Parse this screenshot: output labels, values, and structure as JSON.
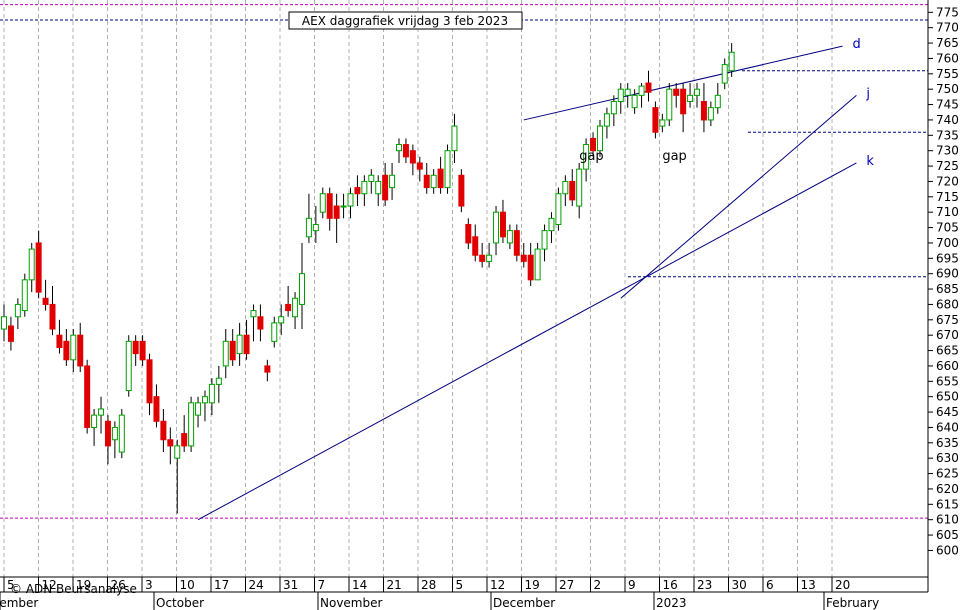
{
  "chart_data": {
    "type": "candlestick",
    "title": "AEX daggrafiek vrijdag 3 feb 2023",
    "copyright": "© ADN Beursanalyse",
    "ylim": [
      597,
      778
    ],
    "y_ticks": [
      600,
      605,
      610,
      615,
      620,
      625,
      630,
      635,
      640,
      645,
      650,
      655,
      660,
      665,
      670,
      675,
      680,
      685,
      690,
      695,
      700,
      705,
      710,
      715,
      720,
      725,
      730,
      735,
      740,
      745,
      750,
      755,
      760,
      765,
      770,
      775
    ],
    "x_day_labels": [
      "5",
      "12",
      "19",
      "26",
      "3",
      "10",
      "17",
      "24",
      "31",
      "7",
      "14",
      "21",
      "28",
      "5",
      "12",
      "19",
      "27",
      "2",
      "9",
      "16",
      "23",
      "30",
      "6",
      "13",
      "20"
    ],
    "x_month_labels": [
      "September",
      "October",
      "November",
      "December",
      "2023",
      "February"
    ],
    "horizontal_levels": [
      {
        "name": "top",
        "value": 772.5,
        "color": "#000080"
      },
      {
        "name": "top2",
        "value": 777.5,
        "color": "#c000c0"
      },
      {
        "name": "resistance-756",
        "value": 756,
        "color": "#000080"
      },
      {
        "name": "support-736",
        "value": 736,
        "color": "#000080"
      },
      {
        "name": "support-689",
        "value": 689,
        "color": "#000080"
      },
      {
        "name": "low-610",
        "value": 610.5,
        "color": "#c000c0"
      }
    ],
    "trendlines": [
      {
        "label": "d",
        "from": {
          "day": 75,
          "value": 740
        },
        "to": {
          "day": 121,
          "value": 764
        }
      },
      {
        "label": "j",
        "from": {
          "day": 89,
          "value": 682
        },
        "to": {
          "day": 123,
          "value": 748
        }
      },
      {
        "label": "k",
        "from": {
          "day": 28,
          "value": 610
        },
        "to": {
          "day": 123,
          "value": 726
        }
      }
    ],
    "annotations": [
      {
        "text": "gap",
        "day": 83,
        "value": 727
      },
      {
        "text": "gap",
        "day": 95,
        "value": 727
      }
    ],
    "candles": [
      {
        "o": 672,
        "h": 680,
        "l": 668,
        "c": 676
      },
      {
        "o": 673,
        "h": 676,
        "l": 665,
        "c": 668
      },
      {
        "o": 676,
        "h": 682,
        "l": 672,
        "c": 680
      },
      {
        "o": 678,
        "h": 690,
        "l": 676,
        "c": 688
      },
      {
        "o": 688,
        "h": 700,
        "l": 684,
        "c": 698
      },
      {
        "o": 700,
        "h": 704,
        "l": 682,
        "c": 684
      },
      {
        "o": 682,
        "h": 688,
        "l": 678,
        "c": 680
      },
      {
        "o": 680,
        "h": 686,
        "l": 670,
        "c": 672
      },
      {
        "o": 670,
        "h": 675,
        "l": 664,
        "c": 666
      },
      {
        "o": 668,
        "h": 672,
        "l": 660,
        "c": 662
      },
      {
        "o": 662,
        "h": 672,
        "l": 658,
        "c": 670
      },
      {
        "o": 670,
        "h": 674,
        "l": 658,
        "c": 660
      },
      {
        "o": 660,
        "h": 662,
        "l": 638,
        "c": 640
      },
      {
        "o": 640,
        "h": 646,
        "l": 634,
        "c": 644
      },
      {
        "o": 644,
        "h": 650,
        "l": 638,
        "c": 646
      },
      {
        "o": 642,
        "h": 644,
        "l": 628,
        "c": 634
      },
      {
        "o": 636,
        "h": 642,
        "l": 630,
        "c": 640
      },
      {
        "o": 632,
        "h": 646,
        "l": 630,
        "c": 644
      },
      {
        "o": 652,
        "h": 670,
        "l": 650,
        "c": 668
      },
      {
        "o": 668,
        "h": 670,
        "l": 660,
        "c": 664
      },
      {
        "o": 668,
        "h": 670,
        "l": 660,
        "c": 662
      },
      {
        "o": 662,
        "h": 664,
        "l": 644,
        "c": 648
      },
      {
        "o": 650,
        "h": 654,
        "l": 640,
        "c": 642
      },
      {
        "o": 642,
        "h": 646,
        "l": 632,
        "c": 636
      },
      {
        "o": 636,
        "h": 640,
        "l": 628,
        "c": 634
      },
      {
        "o": 630,
        "h": 636,
        "l": 612,
        "c": 634
      },
      {
        "o": 638,
        "h": 644,
        "l": 632,
        "c": 634
      },
      {
        "o": 634,
        "h": 650,
        "l": 632,
        "c": 648
      },
      {
        "o": 644,
        "h": 650,
        "l": 640,
        "c": 648
      },
      {
        "o": 648,
        "h": 652,
        "l": 642,
        "c": 650
      },
      {
        "o": 648,
        "h": 656,
        "l": 644,
        "c": 654
      },
      {
        "o": 654,
        "h": 660,
        "l": 648,
        "c": 656
      },
      {
        "o": 660,
        "h": 672,
        "l": 656,
        "c": 668
      },
      {
        "o": 668,
        "h": 672,
        "l": 660,
        "c": 662
      },
      {
        "o": 664,
        "h": 674,
        "l": 660,
        "c": 670
      },
      {
        "o": 670,
        "h": 675,
        "l": 662,
        "c": 664
      },
      {
        "o": 676,
        "h": 680,
        "l": 668,
        "c": 678
      },
      {
        "o": 676,
        "h": 680,
        "l": 668,
        "c": 672
      },
      {
        "o": 660,
        "h": 662,
        "l": 655,
        "c": 658
      },
      {
        "o": 668,
        "h": 676,
        "l": 666,
        "c": 674
      },
      {
        "o": 674,
        "h": 680,
        "l": 670,
        "c": 676
      },
      {
        "o": 680,
        "h": 686,
        "l": 676,
        "c": 678
      },
      {
        "o": 676,
        "h": 684,
        "l": 672,
        "c": 682
      },
      {
        "o": 680,
        "h": 700,
        "l": 672,
        "c": 690
      },
      {
        "o": 702,
        "h": 716,
        "l": 700,
        "c": 708
      },
      {
        "o": 704,
        "h": 712,
        "l": 700,
        "c": 706
      },
      {
        "o": 710,
        "h": 718,
        "l": 708,
        "c": 716
      },
      {
        "o": 716,
        "h": 718,
        "l": 704,
        "c": 708
      },
      {
        "o": 712,
        "h": 716,
        "l": 700,
        "c": 708
      },
      {
        "o": 712,
        "h": 716,
        "l": 708,
        "c": 712
      },
      {
        "o": 712,
        "h": 718,
        "l": 708,
        "c": 716
      },
      {
        "o": 718,
        "h": 722,
        "l": 712,
        "c": 716
      },
      {
        "o": 716,
        "h": 722,
        "l": 712,
        "c": 720
      },
      {
        "o": 720,
        "h": 724,
        "l": 716,
        "c": 722
      },
      {
        "o": 716,
        "h": 722,
        "l": 712,
        "c": 720
      },
      {
        "o": 722,
        "h": 726,
        "l": 712,
        "c": 714
      },
      {
        "o": 718,
        "h": 726,
        "l": 714,
        "c": 722
      },
      {
        "o": 730,
        "h": 734,
        "l": 726,
        "c": 732
      },
      {
        "o": 732,
        "h": 734,
        "l": 726,
        "c": 728
      },
      {
        "o": 730,
        "h": 732,
        "l": 722,
        "c": 726
      },
      {
        "o": 726,
        "h": 728,
        "l": 720,
        "c": 724
      },
      {
        "o": 722,
        "h": 726,
        "l": 716,
        "c": 718
      },
      {
        "o": 718,
        "h": 724,
        "l": 716,
        "c": 722
      },
      {
        "o": 724,
        "h": 728,
        "l": 716,
        "c": 718
      },
      {
        "o": 718,
        "h": 732,
        "l": 716,
        "c": 730
      },
      {
        "o": 730,
        "h": 742,
        "l": 726,
        "c": 738
      },
      {
        "o": 722,
        "h": 724,
        "l": 710,
        "c": 712
      },
      {
        "o": 706,
        "h": 708,
        "l": 698,
        "c": 700
      },
      {
        "o": 702,
        "h": 706,
        "l": 694,
        "c": 696
      },
      {
        "o": 696,
        "h": 700,
        "l": 692,
        "c": 694
      },
      {
        "o": 694,
        "h": 700,
        "l": 692,
        "c": 696
      },
      {
        "o": 700,
        "h": 712,
        "l": 696,
        "c": 710
      },
      {
        "o": 710,
        "h": 714,
        "l": 700,
        "c": 702
      },
      {
        "o": 700,
        "h": 706,
        "l": 698,
        "c": 704
      },
      {
        "o": 704,
        "h": 706,
        "l": 694,
        "c": 696
      },
      {
        "o": 696,
        "h": 700,
        "l": 692,
        "c": 694
      },
      {
        "o": 696,
        "h": 700,
        "l": 686,
        "c": 688
      },
      {
        "o": 688,
        "h": 700,
        "l": 688,
        "c": 698
      },
      {
        "o": 698,
        "h": 706,
        "l": 694,
        "c": 704
      },
      {
        "o": 704,
        "h": 710,
        "l": 700,
        "c": 708
      },
      {
        "o": 706,
        "h": 718,
        "l": 704,
        "c": 716
      },
      {
        "o": 716,
        "h": 722,
        "l": 712,
        "c": 720
      },
      {
        "o": 720,
        "h": 724,
        "l": 712,
        "c": 714
      },
      {
        "o": 712,
        "h": 726,
        "l": 708,
        "c": 724
      },
      {
        "o": 724,
        "h": 734,
        "l": 720,
        "c": 732
      },
      {
        "o": 734,
        "h": 736,
        "l": 728,
        "c": 730
      },
      {
        "o": 730,
        "h": 740,
        "l": 728,
        "c": 738
      },
      {
        "o": 738,
        "h": 744,
        "l": 734,
        "c": 742
      },
      {
        "o": 742,
        "h": 748,
        "l": 738,
        "c": 746
      },
      {
        "o": 746,
        "h": 752,
        "l": 742,
        "c": 750
      },
      {
        "o": 748,
        "h": 752,
        "l": 744,
        "c": 750
      },
      {
        "o": 744,
        "h": 750,
        "l": 742,
        "c": 748
      },
      {
        "o": 748,
        "h": 752,
        "l": 744,
        "c": 751
      },
      {
        "o": 752,
        "h": 756,
        "l": 746,
        "c": 749
      },
      {
        "o": 744,
        "h": 746,
        "l": 734,
        "c": 736
      },
      {
        "o": 738,
        "h": 742,
        "l": 736,
        "c": 740
      },
      {
        "o": 740,
        "h": 752,
        "l": 738,
        "c": 750
      },
      {
        "o": 750,
        "h": 752,
        "l": 744,
        "c": 748
      },
      {
        "o": 750,
        "h": 752,
        "l": 736,
        "c": 742
      },
      {
        "o": 746,
        "h": 752,
        "l": 744,
        "c": 748
      },
      {
        "o": 748,
        "h": 752,
        "l": 744,
        "c": 750
      },
      {
        "o": 746,
        "h": 752,
        "l": 736,
        "c": 740
      },
      {
        "o": 740,
        "h": 746,
        "l": 738,
        "c": 744
      },
      {
        "o": 744,
        "h": 752,
        "l": 742,
        "c": 748
      },
      {
        "o": 752,
        "h": 760,
        "l": 750,
        "c": 758
      },
      {
        "o": 756,
        "h": 765,
        "l": 754,
        "c": 762
      }
    ]
  }
}
